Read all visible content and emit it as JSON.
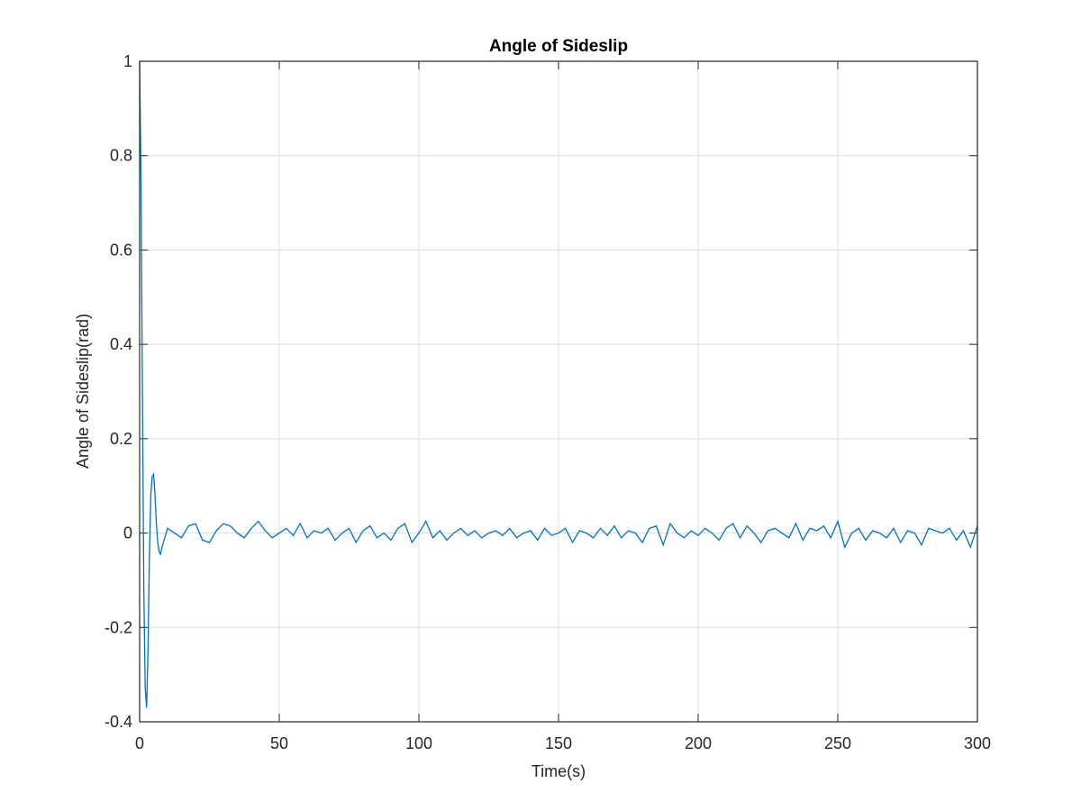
{
  "chart_data": {
    "type": "line",
    "title": "Angle of Sideslip",
    "x_label": "Time(s)",
    "y_label": "Angle of Sideslip(rad)",
    "x": [
      0,
      0.5,
      1,
      1.5,
      2,
      2.5,
      3,
      3.5,
      4,
      4.5,
      5,
      5.5,
      6,
      6.5,
      7,
      7.5,
      8,
      9,
      10,
      12.5,
      15,
      17.5,
      20,
      22.5,
      25,
      27.5,
      30,
      32.5,
      35,
      37.5,
      40,
      42.5,
      45,
      47.5,
      50,
      52.5,
      55,
      57.5,
      60,
      62.5,
      65,
      67.5,
      70,
      72.5,
      75,
      77.5,
      80,
      82.5,
      85,
      87.5,
      90,
      92.5,
      95,
      97.5,
      100,
      102.5,
      105,
      107.5,
      110,
      112.5,
      115,
      117.5,
      120,
      122.5,
      125,
      127.5,
      130,
      132.5,
      135,
      137.5,
      140,
      142.5,
      145,
      147.5,
      150,
      152.5,
      155,
      157.5,
      160,
      162.5,
      165,
      167.5,
      170,
      172.5,
      175,
      177.5,
      180,
      182.5,
      185,
      187.5,
      190,
      192.5,
      195,
      197.5,
      200,
      202.5,
      205,
      207.5,
      210,
      212.5,
      215,
      217.5,
      220,
      222.5,
      225,
      227.5,
      230,
      232.5,
      235,
      237.5,
      240,
      242.5,
      245,
      247.5,
      250,
      252.5,
      255,
      257.5,
      260,
      262.5,
      265,
      267.5,
      270,
      272.5,
      275,
      277.5,
      280,
      282.5,
      285,
      287.5,
      290,
      292.5,
      295,
      297.5,
      300
    ],
    "series": [
      {
        "name": "Angle of Sideslip",
        "color": "#0072bd",
        "values": [
          1,
          0.75,
          0.3,
          -0.12,
          -0.33,
          -0.37,
          -0.25,
          -0.05,
          0.08,
          0.12,
          0.125,
          0.08,
          0.02,
          -0.02,
          -0.04,
          -0.045,
          -0.03,
          -0.01,
          0.01,
          0.0,
          -0.01,
          0.015,
          0.02,
          -0.015,
          -0.02,
          0.005,
          0.02,
          0.015,
          0.0,
          -0.01,
          0.01,
          0.025,
          0.005,
          -0.01,
          0.0,
          0.01,
          -0.005,
          0.02,
          -0.01,
          0.005,
          0.0,
          0.01,
          -0.015,
          0.0,
          0.01,
          -0.02,
          0.005,
          0.015,
          -0.01,
          0.0,
          -0.015,
          0.01,
          0.02,
          -0.02,
          0.0,
          0.025,
          -0.01,
          0.005,
          -0.015,
          0.0,
          0.01,
          -0.005,
          0.005,
          -0.01,
          0.0,
          0.005,
          -0.005,
          0.01,
          -0.01,
          0.0,
          0.005,
          -0.015,
          0.01,
          -0.005,
          0.0,
          0.01,
          -0.02,
          0.005,
          0.0,
          -0.01,
          0.01,
          -0.005,
          0.015,
          -0.01,
          0.005,
          0.0,
          -0.02,
          0.01,
          0.015,
          -0.025,
          0.02,
          0.0,
          -0.01,
          0.005,
          -0.005,
          0.01,
          0.0,
          -0.015,
          0.01,
          0.02,
          -0.01,
          0.015,
          0.0,
          -0.02,
          0.005,
          0.01,
          0.0,
          -0.01,
          0.02,
          -0.015,
          0.01,
          0.005,
          0.015,
          -0.01,
          0.025,
          -0.03,
          0.0,
          0.01,
          -0.015,
          0.005,
          0.0,
          -0.01,
          0.01,
          -0.02,
          0.005,
          0.0,
          -0.025,
          0.01,
          0.005,
          0.0,
          0.01,
          -0.015,
          0.005,
          -0.03,
          0.015
        ]
      }
    ],
    "xlim": [
      0,
      300
    ],
    "xticks": [
      0,
      50,
      100,
      150,
      200,
      250,
      300
    ],
    "ylim": [
      -0.4,
      1
    ],
    "yticks": [
      -0.4,
      -0.2,
      0,
      0.2,
      0.4,
      0.6,
      0.8,
      1
    ],
    "grid": true
  }
}
